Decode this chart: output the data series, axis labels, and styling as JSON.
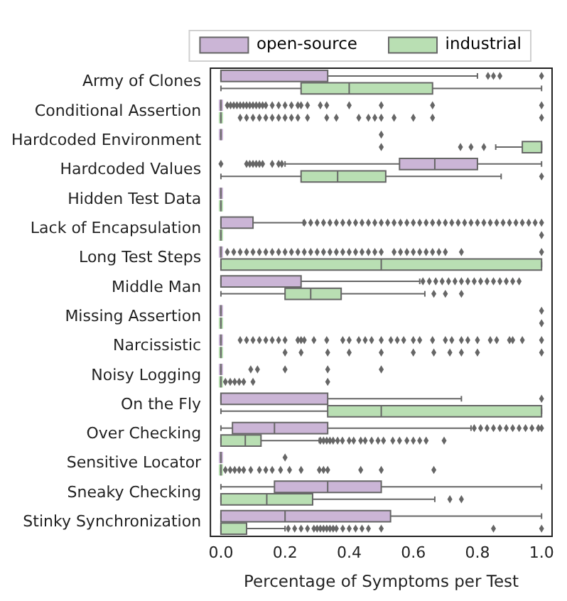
{
  "chart_data": {
    "type": "box",
    "orientation": "horizontal",
    "xlabel": "Percentage of Symptoms per Test",
    "categories": [
      "Army of Clones",
      "Conditional Assertion",
      "Hardcoded Environment",
      "Hardcoded Values",
      "Hidden Test Data",
      "Lack of Encapsulation",
      "Long Test Steps",
      "Middle Man",
      "Missing Assertion",
      "Narcissistic",
      "Noisy Logging",
      "On the Fly",
      "Over Checking",
      "Sensitive Locator",
      "Sneaky Checking",
      "Stinky Synchronization"
    ],
    "xlim": [
      -0.035,
      1.035
    ],
    "xticks": [
      {
        "value": 0,
        "label": "0.0"
      },
      {
        "value": 0.2,
        "label": "0.2"
      },
      {
        "value": 0.4,
        "label": "0.4"
      },
      {
        "value": 0.6,
        "label": "0.6"
      },
      {
        "value": 0.8,
        "label": "0.8"
      },
      {
        "value": 1,
        "label": "1.0"
      }
    ],
    "legend": "top",
    "marker": "diamond",
    "grid": false,
    "series": [
      {
        "name": "open-source",
        "color": "#cbb5d6",
        "boxes": [
          {
            "low": 0,
            "q1": 0,
            "median": 0,
            "q3": 0.333,
            "high": 0.8,
            "outliers": [
              0.833,
              0.85,
              0.87,
              1
            ]
          },
          {
            "low": 0,
            "q1": 0,
            "median": 0,
            "q3": 0,
            "high": 0,
            "outliers": [
              0.02,
              0.03,
              0.04,
              0.05,
              0.06,
              0.07,
              0.08,
              0.09,
              0.1,
              0.11,
              0.12,
              0.13,
              0.14,
              0.16,
              0.18,
              0.2,
              0.22,
              0.24,
              0.25,
              0.27,
              0.31,
              0.33,
              0.4,
              0.5,
              0.66,
              1
            ]
          },
          {
            "low": 0,
            "q1": 0,
            "median": 0,
            "q3": 0,
            "high": 0,
            "outliers": [
              0.5
            ]
          },
          {
            "low": 0.2,
            "q1": 0.557,
            "median": 0.667,
            "q3": 0.8,
            "high": 1,
            "outliers": [
              0,
              0.08,
              0.09,
              0.1,
              0.11,
              0.12,
              0.13,
              0.16,
              0.18,
              0.19
            ]
          },
          {
            "low": 0,
            "q1": 0,
            "median": 0,
            "q3": 0,
            "high": 0
          },
          {
            "low": 0,
            "q1": 0,
            "median": 0,
            "q3": 0.1,
            "high": 0.257,
            "outliers": [
              0.26,
              0.28,
              0.3,
              0.32,
              0.34,
              0.36,
              0.38,
              0.4,
              0.42,
              0.44,
              0.46,
              0.48,
              0.5,
              0.52,
              0.54,
              0.56,
              0.58,
              0.6,
              0.62,
              0.64,
              0.66,
              0.68,
              0.7,
              0.72,
              0.74,
              0.76,
              0.78,
              0.8,
              0.82,
              0.84,
              0.86,
              0.88,
              0.9,
              0.92,
              0.94,
              0.96,
              0.98,
              1
            ]
          },
          {
            "low": 0,
            "q1": 0,
            "median": 0,
            "q3": 0,
            "high": 0,
            "outliers": [
              0.02,
              0.04,
              0.06,
              0.08,
              0.1,
              0.12,
              0.14,
              0.16,
              0.18,
              0.2,
              0.22,
              0.24,
              0.26,
              0.28,
              0.3,
              0.32,
              0.34,
              0.36,
              0.38,
              0.4,
              0.42,
              0.44,
              0.46,
              0.48,
              0.5,
              0.54,
              0.56,
              0.58,
              0.6,
              0.62,
              0.64,
              0.66,
              0.68,
              0.7,
              0.75,
              1
            ]
          },
          {
            "low": 0,
            "q1": 0,
            "median": 0,
            "q3": 0.25,
            "high": 0.62,
            "outliers": [
              0.63,
              0.65,
              0.67,
              0.69,
              0.71,
              0.73,
              0.75,
              0.77,
              0.79,
              0.81,
              0.83,
              0.85,
              0.87,
              0.89,
              0.91,
              0.93
            ]
          },
          {
            "low": 0,
            "q1": 0,
            "median": 0,
            "q3": 0,
            "high": 0,
            "outliers": [
              1
            ]
          },
          {
            "low": 0,
            "q1": 0,
            "median": 0,
            "q3": 0,
            "high": 0,
            "outliers": [
              0.06,
              0.08,
              0.1,
              0.12,
              0.14,
              0.16,
              0.18,
              0.2,
              0.24,
              0.25,
              0.26,
              0.29,
              0.33,
              0.38,
              0.4,
              0.43,
              0.45,
              0.47,
              0.5,
              0.53,
              0.55,
              0.57,
              0.6,
              0.62,
              0.66,
              0.7,
              0.72,
              0.75,
              0.77,
              0.8,
              0.84,
              0.86,
              0.9,
              0.91,
              0.94,
              1
            ]
          },
          {
            "low": 0,
            "q1": 0,
            "median": 0,
            "q3": 0,
            "high": 0,
            "outliers": [
              0.093,
              0.114,
              0.2,
              0.333,
              0.5
            ]
          },
          {
            "low": 0,
            "q1": 0,
            "median": 0,
            "q3": 0.333,
            "high": 0.75,
            "outliers": [
              1
            ]
          },
          {
            "low": 0,
            "q1": 0.036,
            "median": 0.167,
            "q3": 0.333,
            "high": 0.78,
            "outliers": [
              0.79,
              0.81,
              0.83,
              0.85,
              0.87,
              0.89,
              0.91,
              0.93,
              0.95,
              0.97,
              0.99,
              1
            ]
          },
          {
            "low": 0,
            "q1": 0,
            "median": 0,
            "q3": 0,
            "high": 0,
            "outliers": [
              0.2
            ]
          },
          {
            "low": 0,
            "q1": 0.167,
            "median": 0.333,
            "q3": 0.5,
            "high": 1
          },
          {
            "low": 0,
            "q1": 0,
            "median": 0.2,
            "q3": 0.529,
            "high": 1
          }
        ]
      },
      {
        "name": "industrial",
        "color": "#b9dfb3",
        "boxes": [
          {
            "low": 0,
            "q1": 0.25,
            "median": 0.4,
            "q3": 0.66,
            "high": 1
          },
          {
            "low": 0,
            "q1": 0,
            "median": 0,
            "q3": 0,
            "high": 0,
            "outliers": [
              0.06,
              0.08,
              0.1,
              0.12,
              0.14,
              0.16,
              0.18,
              0.2,
              0.22,
              0.24,
              0.27,
              0.33,
              0.36,
              0.43,
              0.46,
              0.48,
              0.5,
              0.54,
              0.6,
              0.66,
              1
            ]
          },
          {
            "low": 0.857,
            "q1": 0.94,
            "median": 1,
            "q3": 1,
            "high": 1,
            "outliers": [
              0.5,
              0.747,
              0.78,
              0.82
            ]
          },
          {
            "low": 0,
            "q1": 0.25,
            "median": 0.364,
            "q3": 0.514,
            "high": 0.874,
            "outliers": [
              1
            ]
          },
          {
            "low": 0,
            "q1": 0,
            "median": 0,
            "q3": 0,
            "high": 0
          },
          {
            "low": 0,
            "q1": 0,
            "median": 0,
            "q3": 0,
            "high": 0,
            "outliers": [
              1
            ]
          },
          {
            "low": 0,
            "q1": 0,
            "median": 0.5,
            "q3": 1,
            "high": 1
          },
          {
            "low": 0,
            "q1": 0.2,
            "median": 0.28,
            "q3": 0.375,
            "high": 0.636,
            "outliers": [
              0.664,
              0.7,
              0.75
            ]
          },
          {
            "low": 0,
            "q1": 0,
            "median": 0,
            "q3": 0,
            "high": 0,
            "outliers": [
              1
            ]
          },
          {
            "low": 0,
            "q1": 0,
            "median": 0,
            "q3": 0,
            "high": 0,
            "outliers": [
              0.2,
              0.25,
              0.333,
              0.4,
              0.5,
              0.6,
              0.664,
              0.714,
              0.75,
              0.8,
              1
            ]
          },
          {
            "low": 0,
            "q1": 0,
            "median": 0,
            "q3": 0,
            "high": 0,
            "outliers": [
              0.014,
              0.029,
              0.043,
              0.057,
              0.071,
              0.1,
              0.333
            ]
          },
          {
            "low": 0,
            "q1": 0.333,
            "median": 0.5,
            "q3": 1,
            "high": 1
          },
          {
            "low": 0,
            "q1": 0,
            "median": 0.076,
            "q3": 0.125,
            "high": 0.307,
            "outliers": [
              0.31,
              0.32,
              0.33,
              0.34,
              0.35,
              0.364,
              0.379,
              0.4,
              0.414,
              0.436,
              0.45,
              0.47,
              0.49,
              0.507,
              0.536,
              0.557,
              0.58,
              0.6,
              0.62,
              0.64,
              0.696
            ]
          },
          {
            "low": 0,
            "q1": 0,
            "median": 0,
            "q3": 0,
            "high": 0,
            "outliers": [
              0.014,
              0.029,
              0.043,
              0.057,
              0.071,
              0.093,
              0.12,
              0.14,
              0.16,
              0.186,
              0.214,
              0.25,
              0.307,
              0.32,
              0.333,
              0.436,
              0.5,
              0.664
            ]
          },
          {
            "low": 0,
            "q1": 0,
            "median": 0.143,
            "q3": 0.286,
            "high": 0.667,
            "outliers": [
              0.714,
              0.75
            ]
          },
          {
            "low": 0,
            "q1": 0,
            "median": 0,
            "q3": 0.08,
            "high": 0.2,
            "outliers": [
              0.21,
              0.23,
              0.25,
              0.27,
              0.29,
              0.3,
              0.31,
              0.32,
              0.33,
              0.34,
              0.35,
              0.36,
              0.38,
              0.4,
              0.42,
              0.44,
              0.46,
              0.5,
              0.85,
              1
            ]
          }
        ]
      }
    ]
  }
}
